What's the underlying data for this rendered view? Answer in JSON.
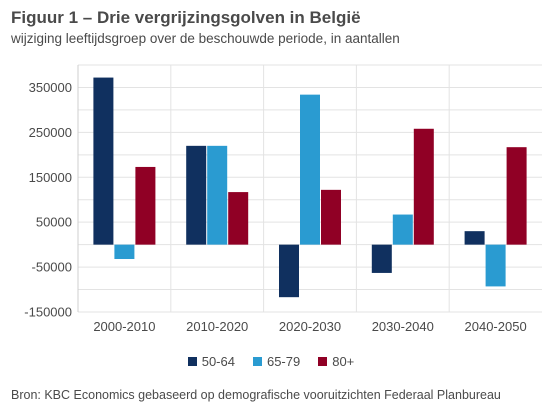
{
  "header": {
    "title": "Figuur 1 – Drie vergrijzingsgolven in België",
    "subtitle": "wijziging leeftijdsgroep over de beschouwde periode, in aantallen"
  },
  "source": "Bron: KBC Economics gebaseerd op demografische vooruitzichten Federaal Planbureau",
  "chart_data": {
    "type": "bar",
    "categories": [
      "2000-2010",
      "2010-2020",
      "2020-2030",
      "2030-2040",
      "2040-2050"
    ],
    "series": [
      {
        "name": "50-64",
        "color": "#10305f",
        "values": [
          372000,
          220000,
          -117000,
          -63000,
          30000
        ]
      },
      {
        "name": "65-79",
        "color": "#2a9bd1",
        "values": [
          -32000,
          220000,
          334000,
          67000,
          -93000
        ]
      },
      {
        "name": "80+",
        "color": "#900025",
        "values": [
          173000,
          117000,
          122000,
          258000,
          217000
        ]
      }
    ],
    "yticks": [
      350000,
      250000,
      150000,
      50000,
      -50000,
      -150000
    ],
    "ytick_labels": [
      "350000",
      "250000",
      "150000",
      "50000",
      "-50000",
      "-150000"
    ],
    "ylim": [
      -150000,
      400000
    ],
    "grid": true,
    "legend_position": "bottom"
  }
}
